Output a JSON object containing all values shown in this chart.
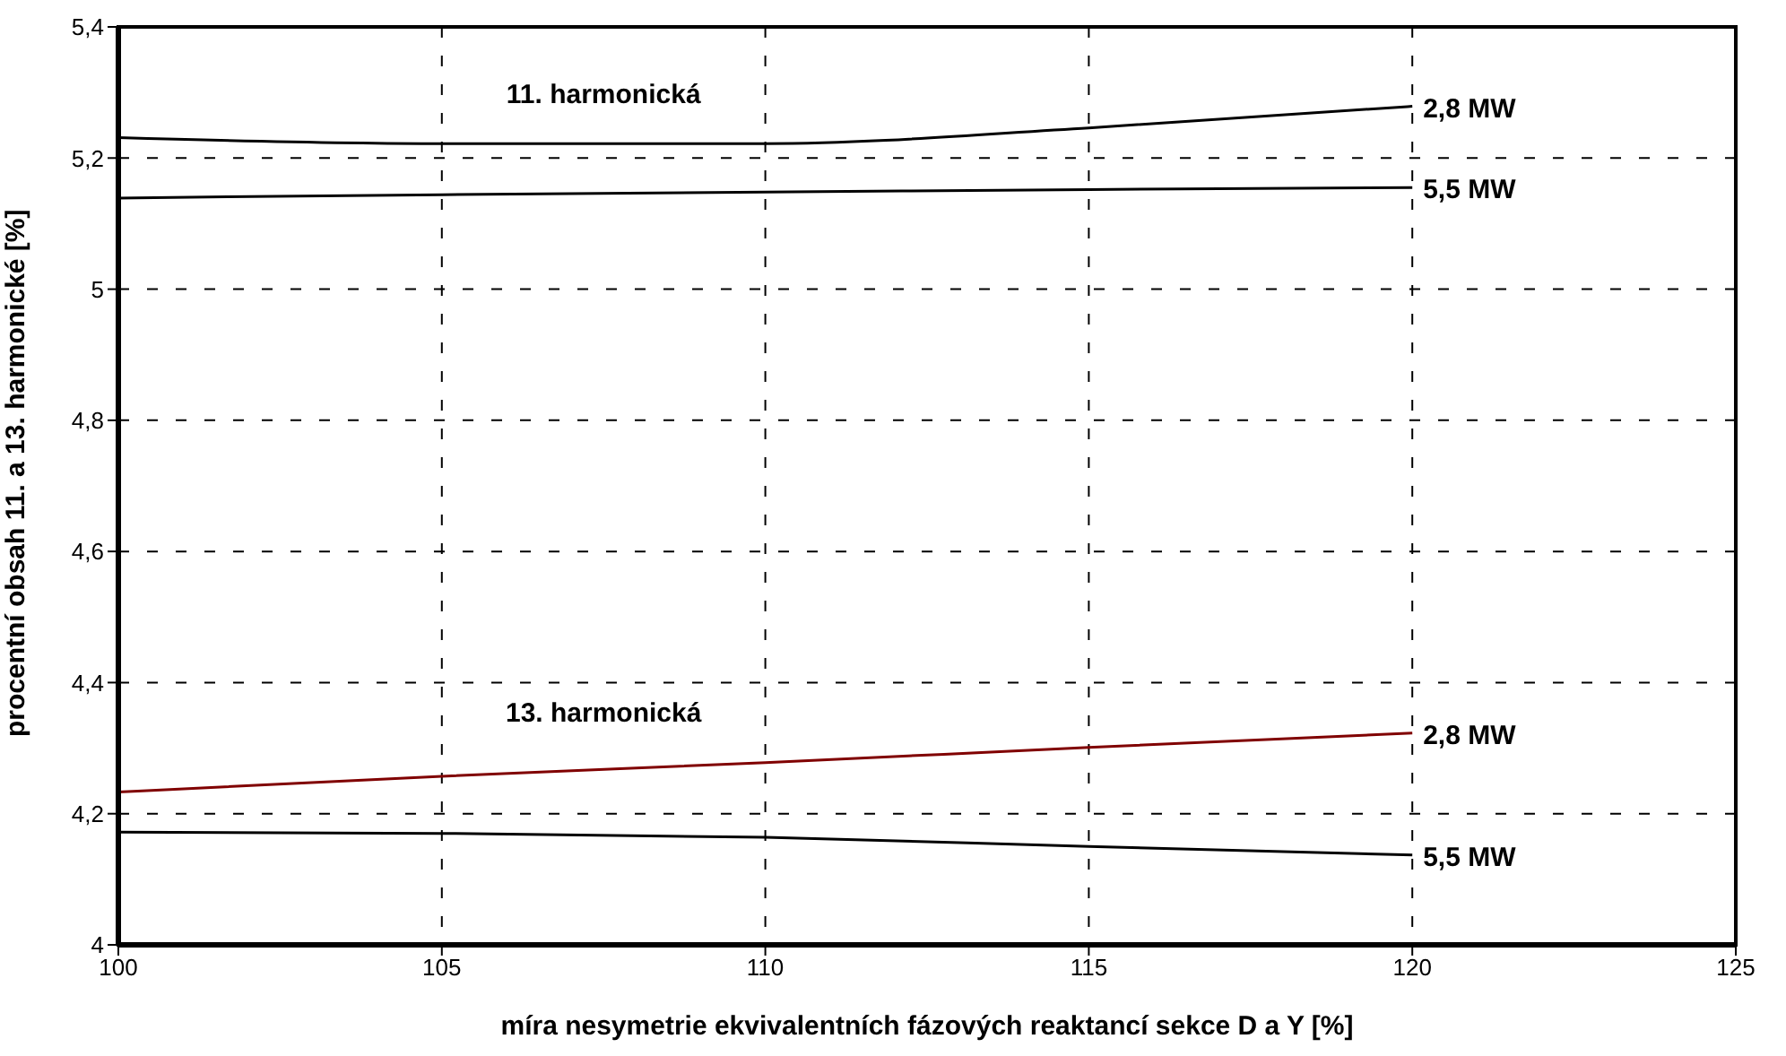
{
  "chart_data": {
    "type": "line",
    "xlabel": "míra nesymetrie ekvivalentních fázových reaktancí sekce D a Y [%]",
    "ylabel": "procentní obsah 11. a 13. harmonické [%]",
    "x": [
      100,
      105,
      110,
      115,
      120
    ],
    "series": [
      {
        "name": "2,8 MW",
        "color": "#000000",
        "values": [
          5.231,
          5.222,
          5.222,
          5.246,
          5.279
        ]
      },
      {
        "name": "5,5 MW",
        "color": "#000000",
        "values": [
          5.139,
          5.144,
          5.148,
          5.152,
          5.155
        ]
      },
      {
        "name": "2,8 MW",
        "color": "#800000",
        "values": [
          4.233,
          4.257,
          4.278,
          4.301,
          4.323
        ]
      },
      {
        "name": "5,5 MW",
        "color": "#000000",
        "values": [
          4.172,
          4.17,
          4.164,
          4.15,
          4.137
        ]
      }
    ],
    "annotations": [
      "11. harmonická",
      "13. harmonická"
    ],
    "xlim": [
      100,
      125
    ],
    "xticks": [
      100,
      105,
      110,
      115,
      120,
      125
    ],
    "ylim": [
      4,
      5.4
    ],
    "yticks": [
      4,
      {
        "value": 4.2,
        "label": "4,2"
      },
      {
        "value": 4.4,
        "label": "4,4"
      },
      {
        "value": 4.6,
        "label": "4,6"
      },
      {
        "value": 4.8,
        "label": "4,8"
      },
      5,
      {
        "value": 5.2,
        "label": "5,2"
      },
      {
        "value": 5.4,
        "label": "5,4"
      }
    ],
    "grid": true,
    "legend": false,
    "marker": "none",
    "line_style": "solid"
  }
}
